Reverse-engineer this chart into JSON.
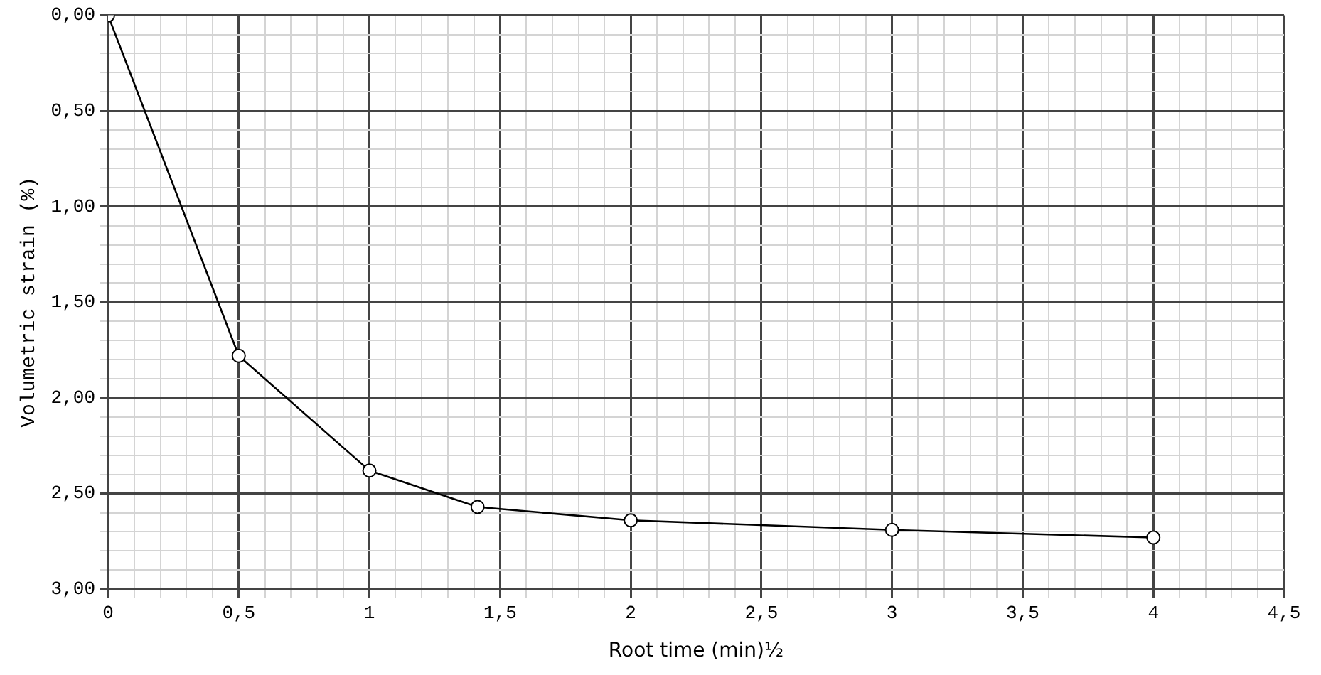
{
  "chart_data": {
    "type": "line",
    "xlabel": "Root time (min)½",
    "ylabel": "Volumetric strain (%)",
    "x": [
      0,
      0.5,
      1,
      1.414,
      2,
      3,
      4
    ],
    "series": [
      {
        "color": "#000000",
        "values": [
          0,
          1.78,
          2.38,
          2.57,
          2.64,
          2.69,
          2.73
        ]
      }
    ],
    "marker": "circle",
    "line_style": "solid",
    "grid": true,
    "legend": false,
    "xlim": [
      0,
      4.5
    ],
    "ylim": [
      3,
      0
    ],
    "xticks": [
      {
        "value": 0,
        "label": "0"
      },
      {
        "value": 0.1,
        "label": null
      },
      {
        "value": 0.2,
        "label": null
      },
      {
        "value": 0.3,
        "label": null
      },
      {
        "value": 0.4,
        "label": null
      },
      {
        "value": 0.5,
        "label": "0,5"
      },
      {
        "value": 0.6,
        "label": null
      },
      {
        "value": 0.7,
        "label": null
      },
      {
        "value": 0.8,
        "label": null
      },
      {
        "value": 0.9,
        "label": null
      },
      {
        "value": 1,
        "label": "1"
      },
      {
        "value": 1.1,
        "label": null
      },
      {
        "value": 1.2,
        "label": null
      },
      {
        "value": 1.3,
        "label": null
      },
      {
        "value": 1.4,
        "label": null
      },
      {
        "value": 1.5,
        "label": "1,5"
      },
      {
        "value": 1.6,
        "label": null
      },
      {
        "value": 1.7,
        "label": null
      },
      {
        "value": 1.8,
        "label": null
      },
      {
        "value": 1.9,
        "label": null
      },
      {
        "value": 2,
        "label": "2"
      },
      {
        "value": 2.1,
        "label": null
      },
      {
        "value": 2.2,
        "label": null
      },
      {
        "value": 2.3,
        "label": null
      },
      {
        "value": 2.4,
        "label": null
      },
      {
        "value": 2.5,
        "label": "2,5"
      },
      {
        "value": 2.6,
        "label": null
      },
      {
        "value": 2.7,
        "label": null
      },
      {
        "value": 2.8,
        "label": null
      },
      {
        "value": 2.9,
        "label": null
      },
      {
        "value": 3,
        "label": "3"
      },
      {
        "value": 3.1,
        "label": null
      },
      {
        "value": 3.2,
        "label": null
      },
      {
        "value": 3.3,
        "label": null
      },
      {
        "value": 3.4,
        "label": null
      },
      {
        "value": 3.5,
        "label": "3,5"
      },
      {
        "value": 3.6,
        "label": null
      },
      {
        "value": 3.7,
        "label": null
      },
      {
        "value": 3.8,
        "label": null
      },
      {
        "value": 3.9,
        "label": null
      },
      {
        "value": 4,
        "label": "4"
      },
      {
        "value": 4.1,
        "label": null
      },
      {
        "value": 4.2,
        "label": null
      },
      {
        "value": 4.3,
        "label": null
      },
      {
        "value": 4.4,
        "label": null
      },
      {
        "value": 4.5,
        "label": "4,5"
      }
    ],
    "yticks": [
      {
        "value": 0,
        "label": "0,00"
      },
      {
        "value": 0.1,
        "label": null
      },
      {
        "value": 0.2,
        "label": null
      },
      {
        "value": 0.3,
        "label": null
      },
      {
        "value": 0.4,
        "label": null
      },
      {
        "value": 0.5,
        "label": "0,50"
      },
      {
        "value": 0.6,
        "label": null
      },
      {
        "value": 0.7,
        "label": null
      },
      {
        "value": 0.8,
        "label": null
      },
      {
        "value": 0.9,
        "label": null
      },
      {
        "value": 1,
        "label": "1,00"
      },
      {
        "value": 1.1,
        "label": null
      },
      {
        "value": 1.2,
        "label": null
      },
      {
        "value": 1.3,
        "label": null
      },
      {
        "value": 1.4,
        "label": null
      },
      {
        "value": 1.5,
        "label": "1,50"
      },
      {
        "value": 1.6,
        "label": null
      },
      {
        "value": 1.7,
        "label": null
      },
      {
        "value": 1.8,
        "label": null
      },
      {
        "value": 1.9,
        "label": null
      },
      {
        "value": 2,
        "label": "2,00"
      },
      {
        "value": 2.1,
        "label": null
      },
      {
        "value": 2.2,
        "label": null
      },
      {
        "value": 2.3,
        "label": null
      },
      {
        "value": 2.4,
        "label": null
      },
      {
        "value": 2.5,
        "label": "2,50"
      },
      {
        "value": 2.6,
        "label": null
      },
      {
        "value": 2.7,
        "label": null
      },
      {
        "value": 2.8,
        "label": null
      },
      {
        "value": 2.9,
        "label": null
      },
      {
        "value": 3,
        "label": "3,00"
      }
    ]
  }
}
